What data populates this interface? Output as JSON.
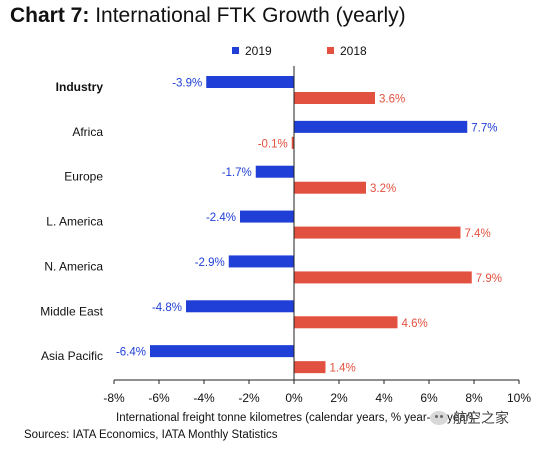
{
  "chart_data": {
    "type": "bar",
    "orientation": "horizontal",
    "title_prefix": "Chart 7:",
    "title": "International FTK Growth (yearly)",
    "xlabel": "International freight tonne kilometres (calendar years, % year-on-year)",
    "ylabel": "",
    "xlim": [
      -8,
      10
    ],
    "x_ticks": [
      -8,
      -6,
      -4,
      -2,
      0,
      2,
      4,
      6,
      8,
      10
    ],
    "tick_suffix": "%",
    "legend_position": "top",
    "grid": false,
    "categories": [
      "Industry",
      "Africa",
      "Europe",
      "L. America",
      "N. America",
      "Middle East",
      "Asia Pacific"
    ],
    "bold_categories": [
      "Industry"
    ],
    "series": [
      {
        "name": "2019",
        "color": "#1f3fd6",
        "values": [
          -3.9,
          7.7,
          -1.7,
          -2.4,
          -2.9,
          -4.8,
          -6.4
        ]
      },
      {
        "name": "2018",
        "color": "#e2513f",
        "values": [
          3.6,
          -0.1,
          3.2,
          7.4,
          7.9,
          4.6,
          1.4
        ]
      }
    ],
    "source": "Sources: IATA Economics, IATA Monthly Statistics"
  },
  "watermark": "航空之家"
}
